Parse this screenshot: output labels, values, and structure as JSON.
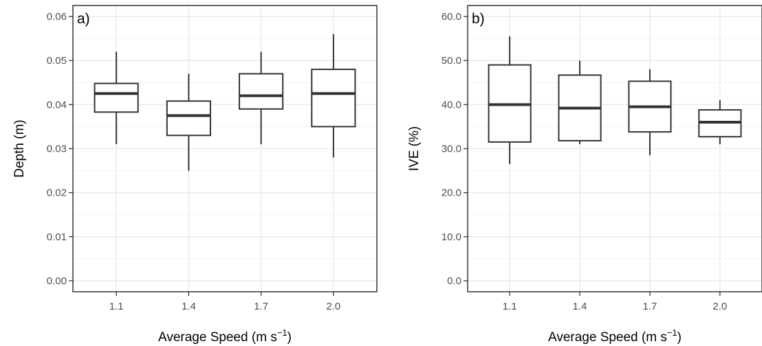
{
  "chart_data": [
    {
      "type": "box",
      "tag": "a)",
      "xlabel": "Average Speed (m s",
      "xlabel_sup": "−1",
      "xlabel_end": ")",
      "ylabel": "Depth (m)",
      "categories": [
        "1.1",
        "1.4",
        "1.7",
        "2.0"
      ],
      "ylim": [
        -0.0025,
        0.0625
      ],
      "yticks": [
        0.0,
        0.01,
        0.02,
        0.03,
        0.04,
        0.05,
        0.06
      ],
      "ytick_labels": [
        "0.00",
        "0.01",
        "0.02",
        "0.03",
        "0.04",
        "0.05",
        "0.06"
      ],
      "grid": true,
      "boxes": [
        {
          "category": "1.1",
          "min": 0.031,
          "q1": 0.0383,
          "median": 0.0425,
          "q3": 0.0448,
          "max": 0.052
        },
        {
          "category": "1.4",
          "min": 0.025,
          "q1": 0.033,
          "median": 0.0375,
          "q3": 0.0408,
          "max": 0.047
        },
        {
          "category": "1.7",
          "min": 0.031,
          "q1": 0.039,
          "median": 0.042,
          "q3": 0.047,
          "max": 0.052
        },
        {
          "category": "2.0",
          "min": 0.028,
          "q1": 0.035,
          "median": 0.0425,
          "q3": 0.048,
          "max": 0.056
        }
      ]
    },
    {
      "type": "box",
      "tag": "b)",
      "xlabel": "Average Speed (m s",
      "xlabel_sup": "−1",
      "xlabel_end": ")",
      "ylabel": "IVE (%)",
      "categories": [
        "1.1",
        "1.4",
        "1.7",
        "2.0"
      ],
      "ylim": [
        -2.5,
        62.5
      ],
      "yticks": [
        0,
        10,
        20,
        30,
        40,
        50,
        60
      ],
      "ytick_labels": [
        "0.0",
        "10.0",
        "20.0",
        "30.0",
        "40.0",
        "50.0",
        "60.0"
      ],
      "grid": true,
      "boxes": [
        {
          "category": "1.1",
          "min": 26.5,
          "q1": 31.5,
          "median": 40.0,
          "q3": 49.0,
          "max": 55.5
        },
        {
          "category": "1.4",
          "min": 31.0,
          "q1": 31.8,
          "median": 39.2,
          "q3": 46.7,
          "max": 50.0
        },
        {
          "category": "1.7",
          "min": 28.5,
          "q1": 33.8,
          "median": 39.5,
          "q3": 45.3,
          "max": 48.0
        },
        {
          "category": "2.0",
          "min": 31.0,
          "q1": 32.7,
          "median": 36.0,
          "q3": 38.8,
          "max": 41.0
        }
      ]
    }
  ]
}
